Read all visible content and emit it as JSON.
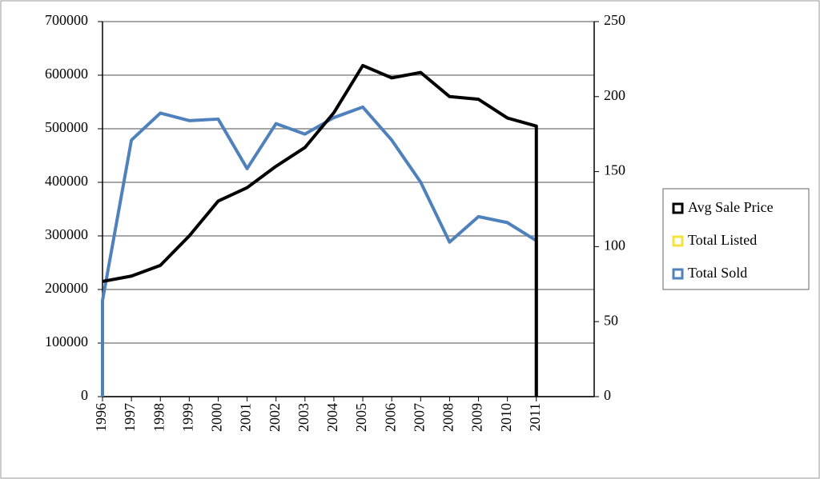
{
  "chart_data": {
    "type": "line",
    "x": [
      1996,
      1996,
      1997,
      1998,
      1999,
      2000,
      2001,
      2002,
      2003,
      2004,
      2005,
      2006,
      2007,
      2008,
      2009,
      2010,
      2011,
      2011
    ],
    "xlim": [
      1996,
      2013
    ],
    "xticks": [
      1996,
      1997,
      1998,
      1999,
      2000,
      2001,
      2002,
      2003,
      2004,
      2005,
      2006,
      2007,
      2008,
      2009,
      2010,
      2011
    ],
    "ylim": [
      0,
      700000
    ],
    "yticks": [
      0,
      100000,
      200000,
      300000,
      400000,
      500000,
      600000,
      700000
    ],
    "y2lim": [
      0,
      250
    ],
    "y2ticks": [
      0,
      50,
      100,
      150,
      200,
      250
    ],
    "grid": true,
    "legend": "right",
    "series": [
      {
        "name": "Avg Sale Price",
        "color": "#000000",
        "values": [
          null,
          215000,
          225000,
          245000,
          300000,
          365000,
          390000,
          430000,
          465000,
          530000,
          618000,
          595000,
          605000,
          560000,
          555000,
          520000,
          505000,
          0
        ]
      },
      {
        "name": "Total Listed",
        "color": "#f5e23c",
        "axis": "y2",
        "values": [
          null,
          null,
          null,
          null,
          null,
          null,
          null,
          null,
          null,
          null,
          null,
          null,
          null,
          null,
          null,
          null,
          null,
          null
        ]
      },
      {
        "name": "Total Sold",
        "color": "#4f81bd",
        "axis": "y2",
        "values": [
          0,
          64,
          171,
          189,
          184,
          185,
          152,
          182,
          175,
          186,
          193,
          171,
          143,
          103,
          120,
          116,
          104,
          0
        ]
      }
    ]
  }
}
